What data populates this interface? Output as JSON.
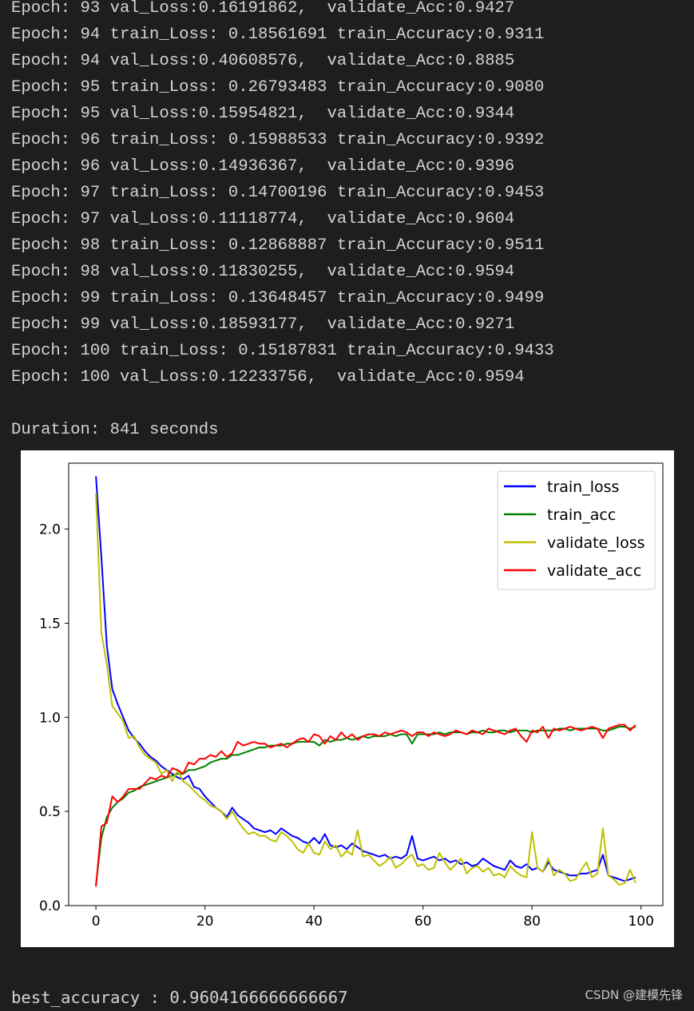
{
  "console": {
    "lines": [
      "Epoch: 93 val_Loss:0.16191862,  validate_Acc:0.9427",
      "Epoch: 94 train_Loss: 0.18561691 train_Accuracy:0.9311",
      "Epoch: 94 val_Loss:0.40608576,  validate_Acc:0.8885",
      "Epoch: 95 train_Loss: 0.26793483 train_Accuracy:0.9080",
      "Epoch: 95 val_Loss:0.15954821,  validate_Acc:0.9344",
      "Epoch: 96 train_Loss: 0.15988533 train_Accuracy:0.9392",
      "Epoch: 96 val_Loss:0.14936367,  validate_Acc:0.9396",
      "Epoch: 97 train_Loss: 0.14700196 train_Accuracy:0.9453",
      "Epoch: 97 val_Loss:0.11118774,  validate_Acc:0.9604",
      "Epoch: 98 train_Loss: 0.12868887 train_Accuracy:0.9511",
      "Epoch: 98 val_Loss:0.11830255,  validate_Acc:0.9594",
      "Epoch: 99 train_Loss: 0.13648457 train_Accuracy:0.9499",
      "Epoch: 99 val_Loss:0.18593177,  validate_Acc:0.9271",
      "Epoch: 100 train_Loss: 0.15187831 train_Accuracy:0.9433",
      "Epoch: 100 val_Loss:0.12233756,  validate_Acc:0.9594"
    ],
    "duration": "Duration: 841 seconds",
    "best_accuracy": "best_accuracy : 0.9604166666666667"
  },
  "watermark": "CSDN @建模先锋",
  "chart_data": {
    "type": "line",
    "title": "",
    "xlabel": "",
    "ylabel": "",
    "xlim": [
      -5,
      104
    ],
    "ylim": [
      0,
      2.35
    ],
    "xticks": [
      "0",
      "20",
      "40",
      "60",
      "80",
      "100"
    ],
    "yticks": [
      "0.0",
      "0.5",
      "1.0",
      "1.5",
      "2.0"
    ],
    "legend_position": "top-right",
    "series": [
      {
        "name": "train_loss",
        "color": "#0000ff",
        "x": [
          0,
          1,
          2,
          3,
          4,
          5,
          6,
          7,
          8,
          9,
          10,
          11,
          12,
          13,
          14,
          15,
          16,
          17,
          18,
          19,
          20,
          21,
          22,
          23,
          24,
          25,
          26,
          27,
          28,
          29,
          30,
          31,
          32,
          33,
          34,
          35,
          36,
          37,
          38,
          39,
          40,
          41,
          42,
          43,
          44,
          45,
          46,
          47,
          48,
          49,
          50,
          51,
          52,
          53,
          54,
          55,
          56,
          57,
          58,
          59,
          60,
          61,
          62,
          63,
          64,
          65,
          66,
          67,
          68,
          69,
          70,
          71,
          72,
          73,
          74,
          75,
          76,
          77,
          78,
          79,
          80,
          81,
          82,
          83,
          84,
          85,
          86,
          87,
          88,
          89,
          90,
          91,
          92,
          93,
          94,
          95,
          96,
          97,
          98,
          99
        ],
        "values": [
          2.28,
          1.85,
          1.38,
          1.15,
          1.07,
          1.0,
          0.93,
          0.89,
          0.86,
          0.82,
          0.79,
          0.77,
          0.74,
          0.72,
          0.7,
          0.68,
          0.67,
          0.69,
          0.63,
          0.62,
          0.58,
          0.55,
          0.52,
          0.5,
          0.47,
          0.52,
          0.48,
          0.46,
          0.44,
          0.41,
          0.4,
          0.39,
          0.4,
          0.38,
          0.41,
          0.39,
          0.37,
          0.36,
          0.34,
          0.33,
          0.36,
          0.33,
          0.38,
          0.32,
          0.31,
          0.32,
          0.3,
          0.33,
          0.31,
          0.29,
          0.28,
          0.27,
          0.26,
          0.27,
          0.25,
          0.26,
          0.25,
          0.27,
          0.37,
          0.25,
          0.24,
          0.25,
          0.26,
          0.24,
          0.25,
          0.23,
          0.24,
          0.22,
          0.23,
          0.21,
          0.22,
          0.25,
          0.23,
          0.21,
          0.2,
          0.19,
          0.24,
          0.21,
          0.2,
          0.22,
          0.19,
          0.2,
          0.18,
          0.23,
          0.19,
          0.18,
          0.17,
          0.16,
          0.16,
          0.17,
          0.17,
          0.18,
          0.19,
          0.27,
          0.16,
          0.15,
          0.14,
          0.13,
          0.14,
          0.15
        ]
      },
      {
        "name": "train_acc",
        "color": "#008000",
        "x": [
          0,
          1,
          2,
          3,
          4,
          5,
          6,
          7,
          8,
          9,
          10,
          11,
          12,
          13,
          14,
          15,
          16,
          17,
          18,
          19,
          20,
          21,
          22,
          23,
          24,
          25,
          26,
          27,
          28,
          29,
          30,
          31,
          32,
          33,
          34,
          35,
          36,
          37,
          38,
          39,
          40,
          41,
          42,
          43,
          44,
          45,
          46,
          47,
          48,
          49,
          50,
          51,
          52,
          53,
          54,
          55,
          56,
          57,
          58,
          59,
          60,
          61,
          62,
          63,
          64,
          65,
          66,
          67,
          68,
          69,
          70,
          71,
          72,
          73,
          74,
          75,
          76,
          77,
          78,
          79,
          80,
          81,
          82,
          83,
          84,
          85,
          86,
          87,
          88,
          89,
          90,
          91,
          92,
          93,
          94,
          95,
          96,
          97,
          98,
          99
        ],
        "values": [
          0.11,
          0.36,
          0.47,
          0.52,
          0.55,
          0.57,
          0.6,
          0.61,
          0.63,
          0.64,
          0.65,
          0.66,
          0.67,
          0.68,
          0.69,
          0.7,
          0.7,
          0.72,
          0.72,
          0.73,
          0.74,
          0.76,
          0.77,
          0.78,
          0.78,
          0.8,
          0.8,
          0.81,
          0.82,
          0.83,
          0.84,
          0.84,
          0.85,
          0.85,
          0.85,
          0.86,
          0.86,
          0.87,
          0.87,
          0.87,
          0.87,
          0.85,
          0.88,
          0.87,
          0.88,
          0.88,
          0.89,
          0.88,
          0.89,
          0.9,
          0.89,
          0.9,
          0.9,
          0.9,
          0.91,
          0.9,
          0.91,
          0.91,
          0.86,
          0.91,
          0.91,
          0.91,
          0.91,
          0.92,
          0.91,
          0.92,
          0.92,
          0.92,
          0.91,
          0.92,
          0.92,
          0.93,
          0.92,
          0.92,
          0.93,
          0.93,
          0.92,
          0.93,
          0.93,
          0.93,
          0.92,
          0.93,
          0.93,
          0.93,
          0.93,
          0.94,
          0.94,
          0.93,
          0.94,
          0.94,
          0.94,
          0.94,
          0.94,
          0.93,
          0.93,
          0.94,
          0.95,
          0.95,
          0.94,
          0.95
        ]
      },
      {
        "name": "validate_loss",
        "color": "#bfbf00",
        "x": [
          0,
          1,
          2,
          3,
          4,
          5,
          6,
          7,
          8,
          9,
          10,
          11,
          12,
          13,
          14,
          15,
          16,
          17,
          18,
          19,
          20,
          21,
          22,
          23,
          24,
          25,
          26,
          27,
          28,
          29,
          30,
          31,
          32,
          33,
          34,
          35,
          36,
          37,
          38,
          39,
          40,
          41,
          42,
          43,
          44,
          45,
          46,
          47,
          48,
          49,
          50,
          51,
          52,
          53,
          54,
          55,
          56,
          57,
          58,
          59,
          60,
          61,
          62,
          63,
          64,
          65,
          66,
          67,
          68,
          69,
          70,
          71,
          72,
          73,
          74,
          75,
          76,
          77,
          78,
          79,
          80,
          81,
          82,
          83,
          84,
          85,
          86,
          87,
          88,
          89,
          90,
          91,
          92,
          93,
          94,
          95,
          96,
          97,
          98,
          99
        ],
        "values": [
          2.19,
          1.45,
          1.28,
          1.06,
          1.02,
          0.98,
          0.89,
          0.9,
          0.84,
          0.8,
          0.78,
          0.76,
          0.7,
          0.72,
          0.66,
          0.72,
          0.66,
          0.64,
          0.61,
          0.58,
          0.56,
          0.53,
          0.52,
          0.5,
          0.46,
          0.5,
          0.45,
          0.41,
          0.38,
          0.39,
          0.37,
          0.37,
          0.35,
          0.34,
          0.39,
          0.37,
          0.34,
          0.3,
          0.28,
          0.33,
          0.28,
          0.27,
          0.34,
          0.3,
          0.32,
          0.26,
          0.29,
          0.27,
          0.4,
          0.26,
          0.27,
          0.24,
          0.21,
          0.23,
          0.26,
          0.2,
          0.22,
          0.25,
          0.27,
          0.21,
          0.22,
          0.19,
          0.2,
          0.28,
          0.23,
          0.19,
          0.22,
          0.25,
          0.17,
          0.2,
          0.21,
          0.18,
          0.2,
          0.16,
          0.17,
          0.15,
          0.21,
          0.18,
          0.16,
          0.15,
          0.39,
          0.2,
          0.18,
          0.25,
          0.16,
          0.19,
          0.17,
          0.13,
          0.14,
          0.19,
          0.23,
          0.15,
          0.17,
          0.41,
          0.16,
          0.14,
          0.11,
          0.12,
          0.19,
          0.12
        ]
      },
      {
        "name": "validate_acc",
        "color": "#ff0000",
        "x": [
          0,
          1,
          2,
          3,
          4,
          5,
          6,
          7,
          8,
          9,
          10,
          11,
          12,
          13,
          14,
          15,
          16,
          17,
          18,
          19,
          20,
          21,
          22,
          23,
          24,
          25,
          26,
          27,
          28,
          29,
          30,
          31,
          32,
          33,
          34,
          35,
          36,
          37,
          38,
          39,
          40,
          41,
          42,
          43,
          44,
          45,
          46,
          47,
          48,
          49,
          50,
          51,
          52,
          53,
          54,
          55,
          56,
          57,
          58,
          59,
          60,
          61,
          62,
          63,
          64,
          65,
          66,
          67,
          68,
          69,
          70,
          71,
          72,
          73,
          74,
          75,
          76,
          77,
          78,
          79,
          80,
          81,
          82,
          83,
          84,
          85,
          86,
          87,
          88,
          89,
          90,
          91,
          92,
          93,
          94,
          95,
          96,
          97,
          98,
          99
        ],
        "values": [
          0.1,
          0.42,
          0.44,
          0.58,
          0.55,
          0.58,
          0.62,
          0.62,
          0.62,
          0.65,
          0.68,
          0.67,
          0.69,
          0.68,
          0.73,
          0.72,
          0.7,
          0.76,
          0.75,
          0.78,
          0.78,
          0.8,
          0.79,
          0.82,
          0.79,
          0.81,
          0.87,
          0.85,
          0.86,
          0.87,
          0.86,
          0.86,
          0.84,
          0.85,
          0.86,
          0.84,
          0.86,
          0.88,
          0.89,
          0.87,
          0.91,
          0.9,
          0.86,
          0.9,
          0.88,
          0.92,
          0.89,
          0.91,
          0.88,
          0.9,
          0.91,
          0.91,
          0.9,
          0.92,
          0.91,
          0.92,
          0.93,
          0.92,
          0.9,
          0.92,
          0.92,
          0.9,
          0.92,
          0.91,
          0.9,
          0.91,
          0.93,
          0.92,
          0.91,
          0.93,
          0.92,
          0.91,
          0.94,
          0.93,
          0.92,
          0.91,
          0.93,
          0.94,
          0.9,
          0.87,
          0.93,
          0.92,
          0.95,
          0.89,
          0.94,
          0.93,
          0.94,
          0.95,
          0.94,
          0.93,
          0.94,
          0.95,
          0.94,
          0.89,
          0.94,
          0.95,
          0.96,
          0.96,
          0.93,
          0.96
        ]
      }
    ]
  }
}
